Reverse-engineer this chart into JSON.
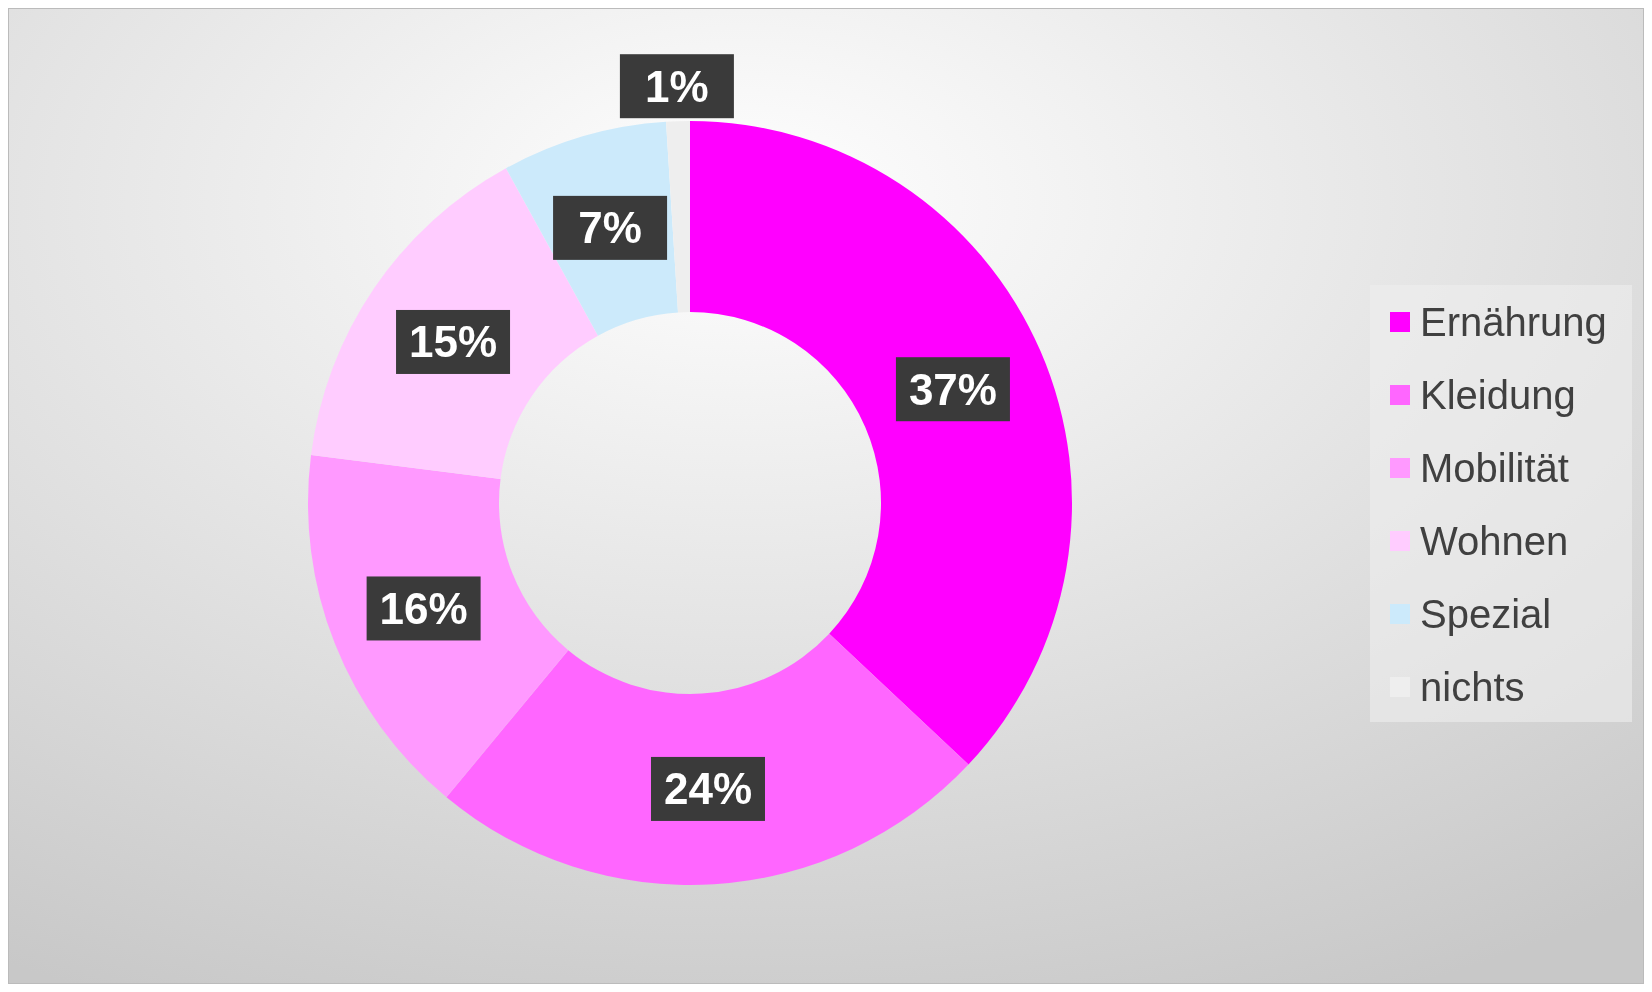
{
  "chart_data": {
    "type": "donut",
    "categories": [
      "Ernährung",
      "Kleidung",
      "Mobilität",
      "Wohnen",
      "Spezial",
      "nichts"
    ],
    "values": [
      37,
      24,
      16,
      15,
      7,
      1
    ],
    "colors": [
      "#ff00ff",
      "#ff66ff",
      "#ff99ff",
      "#ffccff",
      "#cceafb",
      "#eeeeee"
    ],
    "value_labels": [
      "37%",
      "24%",
      "16%",
      "15%",
      "7%",
      "1%"
    ],
    "legend": "right"
  }
}
